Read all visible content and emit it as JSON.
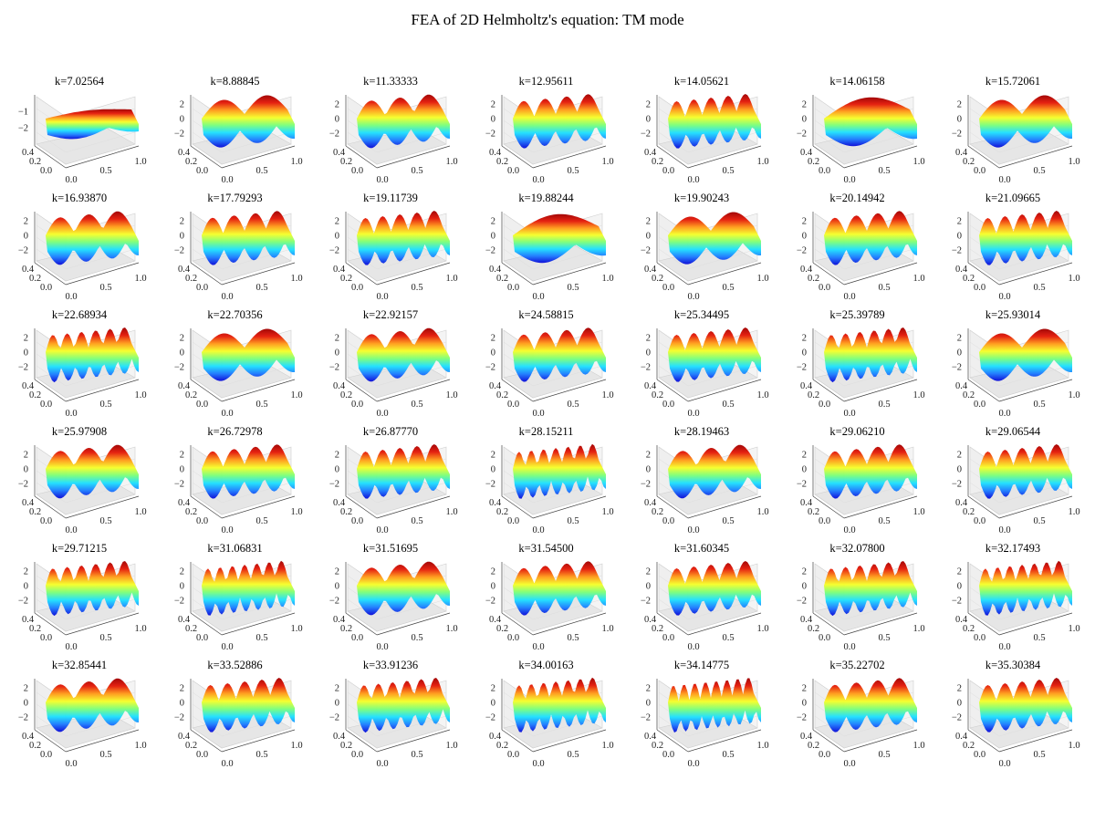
{
  "title": "FEA of 2D Helmholtz's equation: TM mode",
  "colormap": [
    "#0b0bd8",
    "#1e7cff",
    "#1fe0ff",
    "#7dff7a",
    "#f6ff2a",
    "#ff9a1a",
    "#e41b0a",
    "#a00000"
  ],
  "chart_data": {
    "type": "surface-grid",
    "rows": 6,
    "cols": 7,
    "axes": {
      "x_ticks": [
        "0.0",
        "0.5",
        "1.0"
      ],
      "y_ticks": [
        "0.0",
        "0.2",
        "0.4"
      ],
      "z_ticks_default": [
        "2",
        "0",
        "−2"
      ],
      "z_ticks_first": [
        "−1",
        "−2"
      ]
    },
    "panels": [
      {
        "label": "k=7.02564"
      },
      {
        "label": "k=8.88845"
      },
      {
        "label": "k=11.33333"
      },
      {
        "label": "k=12.95611"
      },
      {
        "label": "k=14.05621"
      },
      {
        "label": "k=14.06158"
      },
      {
        "label": "k=15.72061"
      },
      {
        "label": "k=16.93870"
      },
      {
        "label": "k=17.79293"
      },
      {
        "label": "k=19.11739"
      },
      {
        "label": "k=19.88244"
      },
      {
        "label": "k=19.90243"
      },
      {
        "label": "k=20.14942"
      },
      {
        "label": "k=21.09665"
      },
      {
        "label": "k=22.68934"
      },
      {
        "label": "k=22.70356"
      },
      {
        "label": "k=22.92157"
      },
      {
        "label": "k=24.58815"
      },
      {
        "label": "k=25.34495"
      },
      {
        "label": "k=25.39789"
      },
      {
        "label": "k=25.93014"
      },
      {
        "label": "k=25.97908"
      },
      {
        "label": "k=26.72978"
      },
      {
        "label": "k=26.87770"
      },
      {
        "label": "k=28.15211"
      },
      {
        "label": "k=28.19463"
      },
      {
        "label": "k=29.06210"
      },
      {
        "label": "k=29.06544"
      },
      {
        "label": "k=29.71215"
      },
      {
        "label": "k=31.06831"
      },
      {
        "label": "k=31.51695"
      },
      {
        "label": "k=31.54500"
      },
      {
        "label": "k=31.60345"
      },
      {
        "label": "k=32.07800"
      },
      {
        "label": "k=32.17493"
      },
      {
        "label": "k=32.85441"
      },
      {
        "label": "k=33.52886"
      },
      {
        "label": "k=33.91236"
      },
      {
        "label": "k=34.00163"
      },
      {
        "label": "k=34.14775"
      },
      {
        "label": "k=35.22702"
      },
      {
        "label": "k=35.30384"
      }
    ]
  }
}
